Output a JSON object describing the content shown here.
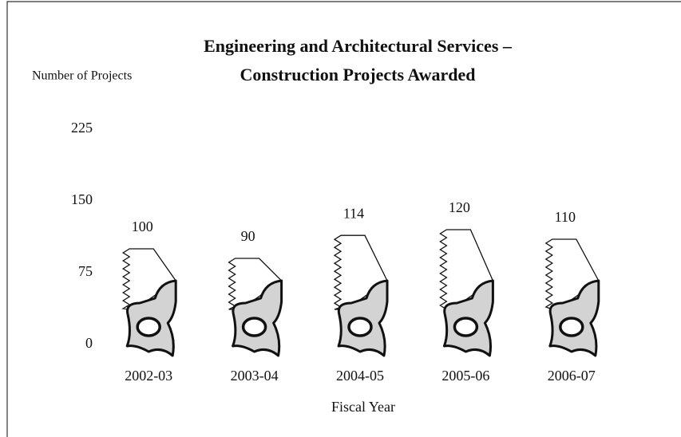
{
  "chart_data": {
    "type": "pictograph",
    "title": "Engineering and Architectural Services –",
    "subtitle": "Construction Projects Awarded",
    "y_label": "Number of Projects",
    "x_label": "Fiscal Year",
    "categories": [
      "2002-03",
      "2003-04",
      "2004-05",
      "2005-06",
      "2006-07"
    ],
    "values": [
      100,
      90,
      114,
      120,
      110
    ],
    "color": "#d3d3d3",
    "ylim": [
      0,
      225
    ],
    "yticks": [
      0,
      75,
      150,
      225
    ],
    "grid": false
  }
}
